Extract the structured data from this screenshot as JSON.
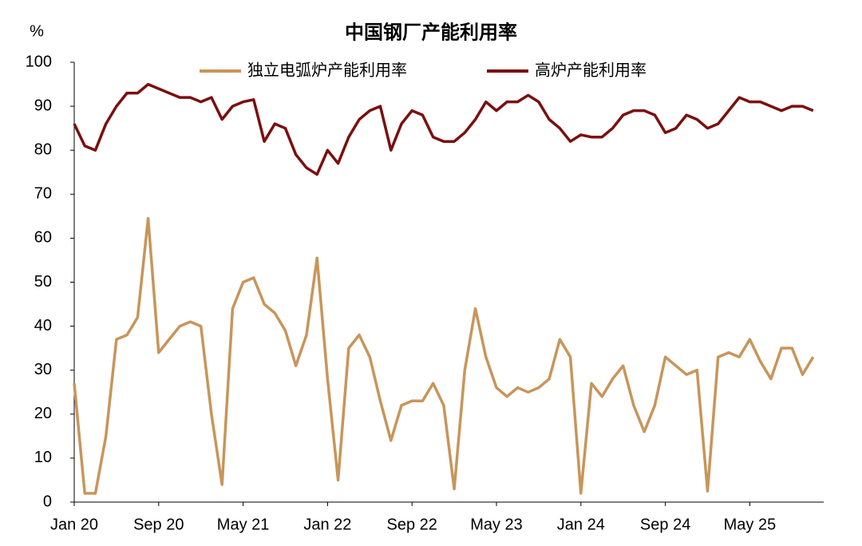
{
  "chart_data": {
    "type": "line",
    "title": "中国钢厂产能利用率",
    "y_label": "%",
    "x": [
      "2020-01",
      "2020-02",
      "2020-03",
      "2020-04",
      "2020-05",
      "2020-06",
      "2020-07",
      "2020-08",
      "2020-09",
      "2020-10",
      "2020-11",
      "2020-12",
      "2021-01",
      "2021-02",
      "2021-03",
      "2021-04",
      "2021-05",
      "2021-06",
      "2021-07",
      "2021-08",
      "2021-09",
      "2021-10",
      "2021-11",
      "2021-12",
      "2022-01",
      "2022-02",
      "2022-03",
      "2022-04",
      "2022-05",
      "2022-06",
      "2022-07",
      "2022-08",
      "2022-09",
      "2022-10",
      "2022-11",
      "2022-12",
      "2023-01",
      "2023-02",
      "2023-03",
      "2023-04",
      "2023-05",
      "2023-06",
      "2023-07",
      "2023-08",
      "2023-09",
      "2023-10",
      "2023-11",
      "2023-12",
      "2024-01",
      "2024-02",
      "2024-03",
      "2024-04",
      "2024-05",
      "2024-06",
      "2024-07",
      "2024-08",
      "2024-09",
      "2024-10",
      "2024-11",
      "2024-12",
      "2025-01",
      "2025-02",
      "2025-03",
      "2025-04",
      "2025-05",
      "2025-06",
      "2025-07",
      "2025-08",
      "2025-09",
      "2025-10",
      "2025-11"
    ],
    "series": [
      {
        "name": "独立电弧炉产能利用率",
        "color": "#c8955a",
        "values": [
          27,
          2,
          2,
          15,
          37,
          38,
          42,
          64.5,
          34,
          37,
          40,
          41,
          40,
          20,
          4,
          44,
          50,
          51,
          45,
          43,
          39,
          31,
          38,
          55.5,
          28,
          5,
          35,
          38,
          33,
          23,
          14,
          22,
          23,
          23,
          27,
          22,
          3,
          30,
          44,
          33,
          26,
          24,
          26,
          25,
          26,
          28,
          37,
          33,
          2,
          27,
          24,
          28,
          31,
          22,
          16,
          22,
          33,
          31,
          29,
          30,
          2.5,
          33,
          34,
          33,
          37,
          32,
          28,
          35,
          35,
          29,
          33
        ]
      },
      {
        "name": "高炉产能利用率",
        "color": "#7b0f0f",
        "values": [
          86,
          81,
          80,
          86,
          90,
          93,
          93,
          95,
          94,
          93,
          92,
          92,
          91,
          92,
          87,
          90,
          91,
          91.5,
          82,
          86,
          85,
          79,
          76,
          74.5,
          80,
          77,
          83,
          87,
          89,
          90,
          80,
          86,
          89,
          88,
          83,
          82,
          82,
          84,
          87,
          91,
          89,
          91,
          91,
          92.5,
          91,
          87,
          85,
          82,
          83.5,
          83,
          83,
          85,
          88,
          89,
          89,
          88,
          84,
          85,
          88,
          87,
          85,
          86,
          89,
          92,
          91,
          91,
          90,
          89,
          90,
          90,
          89
        ]
      }
    ],
    "xlim": [
      "2020-01",
      "2025-12"
    ],
    "xticks": [
      {
        "value": "2020-01",
        "label": "Jan 20"
      },
      {
        "value": "2020-09",
        "label": "Sep 20"
      },
      {
        "value": "2021-05",
        "label": "May 21"
      },
      {
        "value": "2022-01",
        "label": "Jan 22"
      },
      {
        "value": "2022-09",
        "label": "Sep 22"
      },
      {
        "value": "2023-05",
        "label": "May 23"
      },
      {
        "value": "2024-01",
        "label": "Jan 24"
      },
      {
        "value": "2024-09",
        "label": "Sep 24"
      },
      {
        "value": "2025-05",
        "label": "May 25"
      }
    ],
    "ylim": [
      0,
      100
    ],
    "yticks": [
      0,
      10,
      20,
      30,
      40,
      50,
      60,
      70,
      80,
      90,
      100
    ],
    "grid": false,
    "legend": "top"
  }
}
